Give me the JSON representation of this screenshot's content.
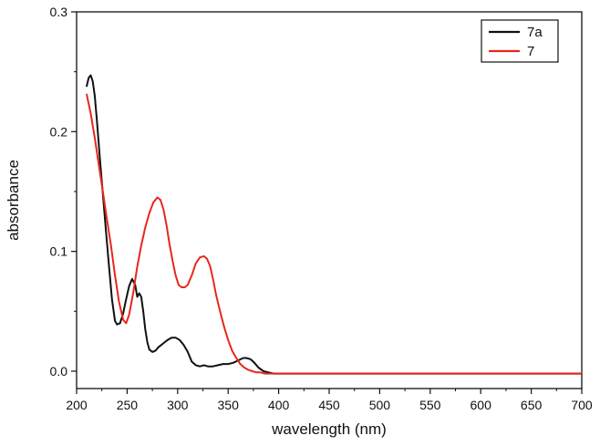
{
  "chart_data": {
    "type": "line",
    "title": "",
    "xlabel": "wavelength (nm)",
    "ylabel": "absorbance",
    "xlim": [
      200,
      700
    ],
    "ylim": [
      -0.0145,
      0.3
    ],
    "x_ticks": [
      200,
      250,
      300,
      350,
      400,
      450,
      500,
      550,
      600,
      650,
      700
    ],
    "y_ticks": [
      0.0,
      0.1,
      0.2,
      0.3
    ],
    "x_tick_labels": [
      "200",
      "250",
      "300",
      "350",
      "400",
      "450",
      "500",
      "550",
      "600",
      "650",
      "700"
    ],
    "y_tick_labels": [
      "0.0",
      "0.1",
      "0.2",
      "0.3"
    ],
    "grid": false,
    "legend_position": "top-right",
    "series": [
      {
        "name": "7a",
        "color": "#111111",
        "x": [
          210,
          212,
          214,
          216,
          218,
          220,
          223,
          226,
          229,
          232,
          235,
          238,
          240,
          243,
          246,
          249,
          252,
          255,
          258,
          260,
          262,
          264,
          266,
          268,
          270,
          272,
          275,
          278,
          281,
          284,
          287,
          290,
          294,
          298,
          302,
          306,
          310,
          314,
          318,
          322,
          326,
          330,
          335,
          340,
          345,
          350,
          355,
          360,
          365,
          368,
          372,
          376,
          380,
          385,
          390,
          395,
          400,
          450,
          500,
          550,
          600,
          650,
          700
        ],
        "y": [
          0.238,
          0.245,
          0.247,
          0.242,
          0.23,
          0.21,
          0.178,
          0.148,
          0.118,
          0.088,
          0.06,
          0.042,
          0.039,
          0.04,
          0.048,
          0.06,
          0.071,
          0.077,
          0.072,
          0.062,
          0.065,
          0.062,
          0.05,
          0.035,
          0.024,
          0.018,
          0.016,
          0.017,
          0.02,
          0.022,
          0.024,
          0.026,
          0.028,
          0.028,
          0.026,
          0.022,
          0.016,
          0.008,
          0.005,
          0.004,
          0.005,
          0.004,
          0.004,
          0.005,
          0.006,
          0.006,
          0.007,
          0.009,
          0.011,
          0.011,
          0.01,
          0.007,
          0.003,
          0.0,
          -0.001,
          -0.002,
          -0.002,
          -0.002,
          -0.002,
          -0.002,
          -0.002,
          -0.002,
          -0.002
        ]
      },
      {
        "name": "7",
        "color": "#e8271c",
        "x": [
          210,
          214,
          218,
          222,
          226,
          230,
          234,
          238,
          242,
          246,
          249,
          252,
          256,
          260,
          264,
          268,
          272,
          276,
          280,
          283,
          286,
          289,
          292,
          295,
          298,
          301,
          304,
          307,
          310,
          314,
          318,
          322,
          326,
          329,
          332,
          335,
          338,
          342,
          346,
          350,
          354,
          358,
          362,
          366,
          370,
          374,
          378,
          382,
          386,
          390,
          395,
          400,
          450,
          500,
          550,
          600,
          650,
          700
        ],
        "y": [
          0.231,
          0.215,
          0.195,
          0.172,
          0.15,
          0.127,
          0.105,
          0.08,
          0.058,
          0.043,
          0.04,
          0.047,
          0.065,
          0.087,
          0.105,
          0.12,
          0.132,
          0.141,
          0.145,
          0.143,
          0.135,
          0.122,
          0.106,
          0.092,
          0.08,
          0.072,
          0.07,
          0.07,
          0.072,
          0.08,
          0.09,
          0.095,
          0.096,
          0.094,
          0.088,
          0.077,
          0.064,
          0.05,
          0.037,
          0.026,
          0.017,
          0.011,
          0.006,
          0.003,
          0.001,
          0.0,
          -0.001,
          -0.001,
          -0.002,
          -0.002,
          -0.002,
          -0.002,
          -0.002,
          -0.002,
          -0.002,
          -0.002,
          -0.002,
          -0.002
        ]
      }
    ]
  }
}
